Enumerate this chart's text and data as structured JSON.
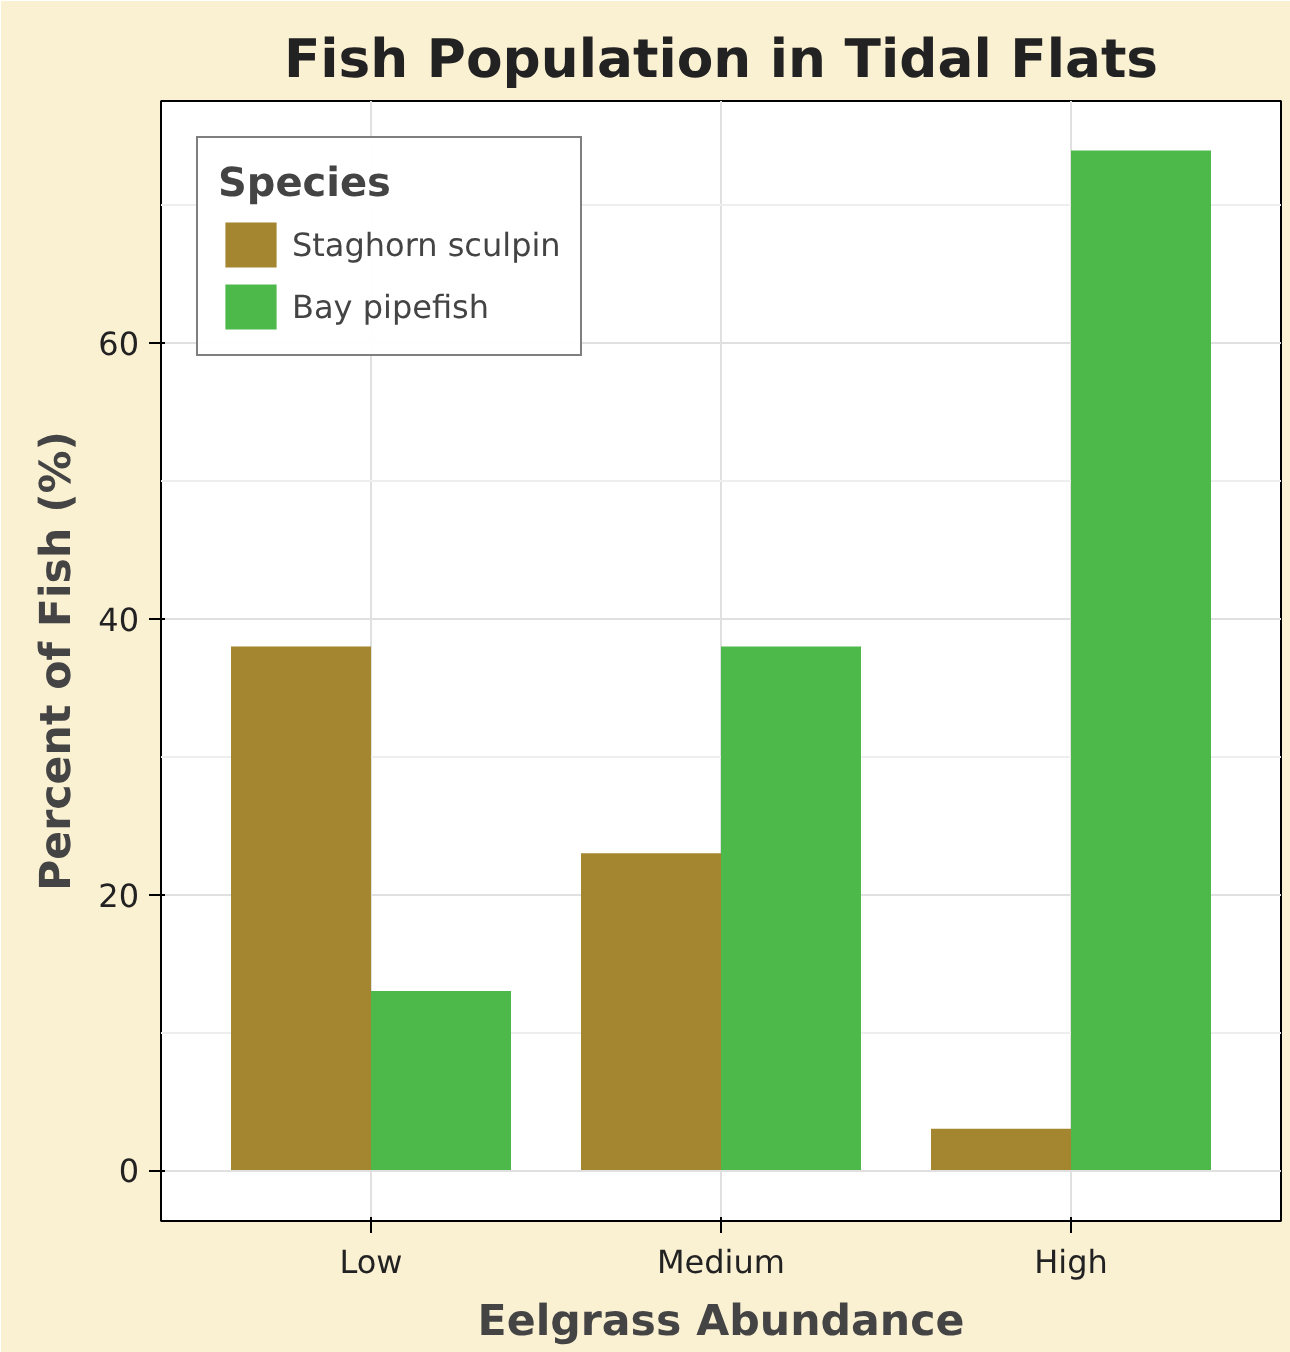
{
  "chart_data": {
    "type": "bar",
    "title": "Fish Population in Tidal Flats",
    "xlabel": "Eelgrass Abundance",
    "ylabel": "Percent of Fish (%)",
    "legend_title": "Species",
    "categories": [
      "Low",
      "Medium",
      "High"
    ],
    "series": [
      {
        "name": "Staghorn sculpin",
        "color": "#a3862f",
        "values": [
          38,
          23,
          3
        ]
      },
      {
        "name": "Bay pipefish",
        "color": "#4cb94a",
        "values": [
          13,
          38,
          74
        ]
      }
    ],
    "ylim": [
      -3.7,
      77.6
    ],
    "yticks": [
      0,
      20,
      40,
      60
    ],
    "grid": true,
    "legend": "top left"
  }
}
